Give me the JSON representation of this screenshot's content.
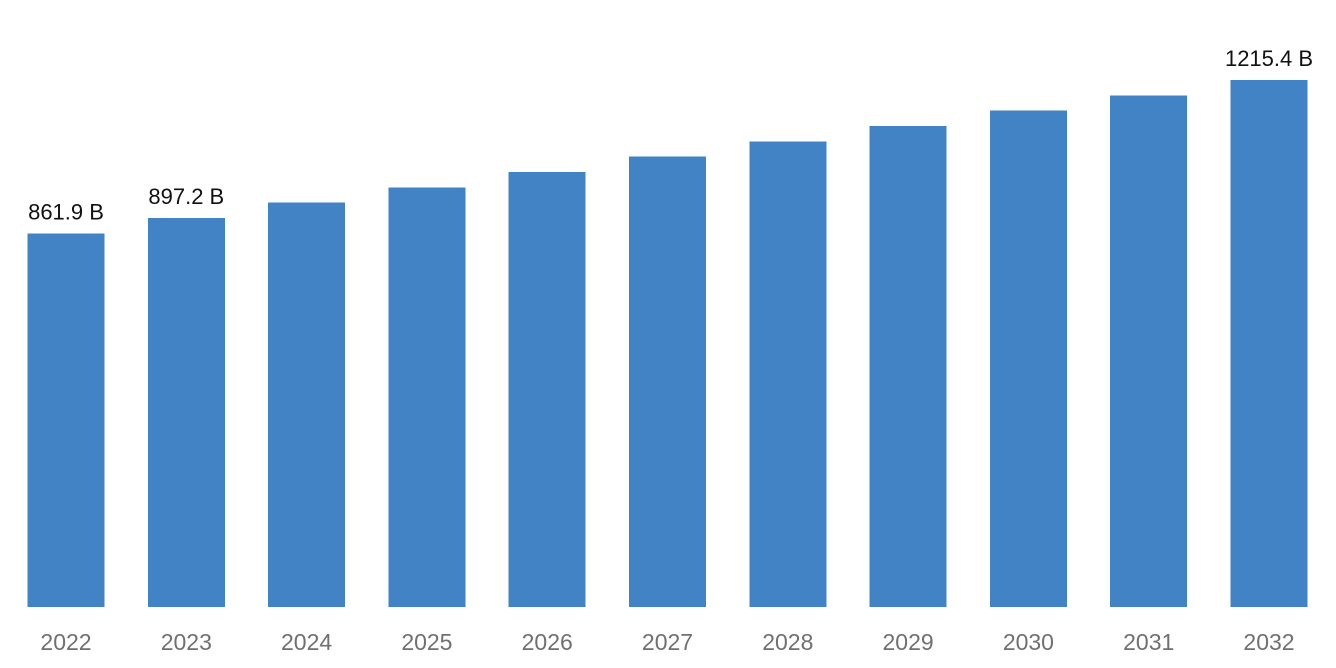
{
  "chart_data": {
    "type": "bar",
    "title": "",
    "xlabel": "",
    "ylabel": "",
    "categories": [
      "2022",
      "2023",
      "2024",
      "2025",
      "2026",
      "2027",
      "2028",
      "2029",
      "2030",
      "2031",
      "2032"
    ],
    "values": [
      861.9,
      897.2,
      932.6,
      967.9,
      1003.2,
      1038.5,
      1073.9,
      1109.2,
      1144.5,
      1179.8,
      1215.4
    ],
    "data_labels": [
      "861.9 B",
      "897.2 B",
      "",
      "",
      "",
      "",
      "",
      "",
      "",
      "",
      "1215.4 B"
    ],
    "ylim": [
      0,
      1215.4
    ],
    "grid": false,
    "legend": "none",
    "colors": {
      "bar": "#4183c4",
      "tick_label": "#707070",
      "data_label": "#111111"
    }
  }
}
